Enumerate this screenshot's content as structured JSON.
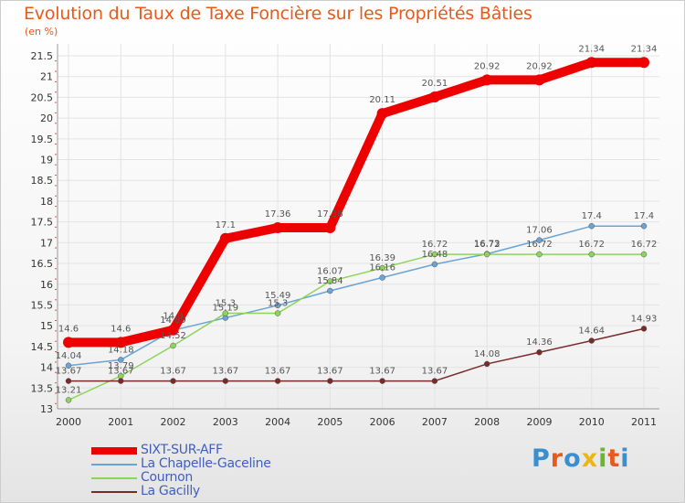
{
  "title": "Evolution du Taux de Taxe Foncière sur les Propriétés Bâties",
  "subtitle": "(en %)",
  "logo": {
    "text": "Proxiti",
    "colors": [
      "#3a8fd0",
      "#e8591a",
      "#3a8fd0",
      "#e8b71a",
      "#6ab532",
      "#e8591a",
      "#3a8fd0"
    ]
  },
  "chart_data": {
    "type": "line",
    "title": "Evolution du Taux de Taxe Foncière sur les Propriétés Bâties",
    "ylabel": "(en %)",
    "xlabel": "",
    "ylim": [
      13,
      21.5
    ],
    "yticks": [
      "13",
      "13.5",
      "14",
      "14.5",
      "15",
      "15.5",
      "16",
      "16.5",
      "17",
      "17.5",
      "18",
      "18.5",
      "19",
      "19.5",
      "20",
      "20.5",
      "21",
      "21.5"
    ],
    "categories": [
      "2000",
      "2001",
      "2002",
      "2003",
      "2004",
      "2005",
      "2006",
      "2007",
      "2008",
      "2009",
      "2010",
      "2011"
    ],
    "grid": true,
    "legend_position": "bottom-left",
    "series": [
      {
        "name": "SIXT-SUR-AFF",
        "color": "#ee0000",
        "values": [
          14.6,
          14.6,
          14.9,
          17.1,
          17.36,
          17.36,
          20.11,
          20.51,
          20.92,
          20.92,
          21.34,
          21.34
        ],
        "labels": [
          "14.6",
          "14.6",
          "14.9",
          "17.1",
          "17.36",
          "17.36",
          "20.11",
          "20.51",
          "20.92",
          "20.92",
          "21.34",
          "21.34"
        ]
      },
      {
        "name": "La Chapelle-Gaceline",
        "color": "#6aa3d5",
        "values": [
          14.04,
          14.18,
          14.89,
          15.19,
          15.49,
          15.84,
          16.16,
          16.48,
          16.73,
          17.06,
          17.4,
          17.4
        ],
        "labels": [
          "14.04",
          "14.18",
          "14.89",
          "15.19",
          "15.49",
          "15.84",
          "16.16",
          "16.48",
          "16.73",
          "17.06",
          "17.4",
          "17.4"
        ]
      },
      {
        "name": "Cournon",
        "color": "#8fd45a",
        "values": [
          13.21,
          13.79,
          14.52,
          15.3,
          15.3,
          16.07,
          16.39,
          16.72,
          16.72,
          16.72,
          16.72,
          16.72
        ],
        "labels": [
          "13.21",
          "13.79",
          "14.52",
          "15.3",
          "15.3",
          "16.07",
          "16.39",
          "16.72",
          "16.72",
          "16.72",
          "16.72",
          "16.72"
        ]
      },
      {
        "name": "La Gacilly",
        "color": "#7a2a2a",
        "values": [
          13.67,
          13.67,
          13.67,
          13.67,
          13.67,
          13.67,
          13.67,
          13.67,
          14.08,
          14.36,
          14.64,
          14.93
        ],
        "labels": [
          "13.67",
          "13.67",
          "13.67",
          "13.67",
          "13.67",
          "13.67",
          "13.67",
          "13.67",
          "14.08",
          "14.36",
          "14.64",
          "14.93"
        ]
      }
    ]
  }
}
